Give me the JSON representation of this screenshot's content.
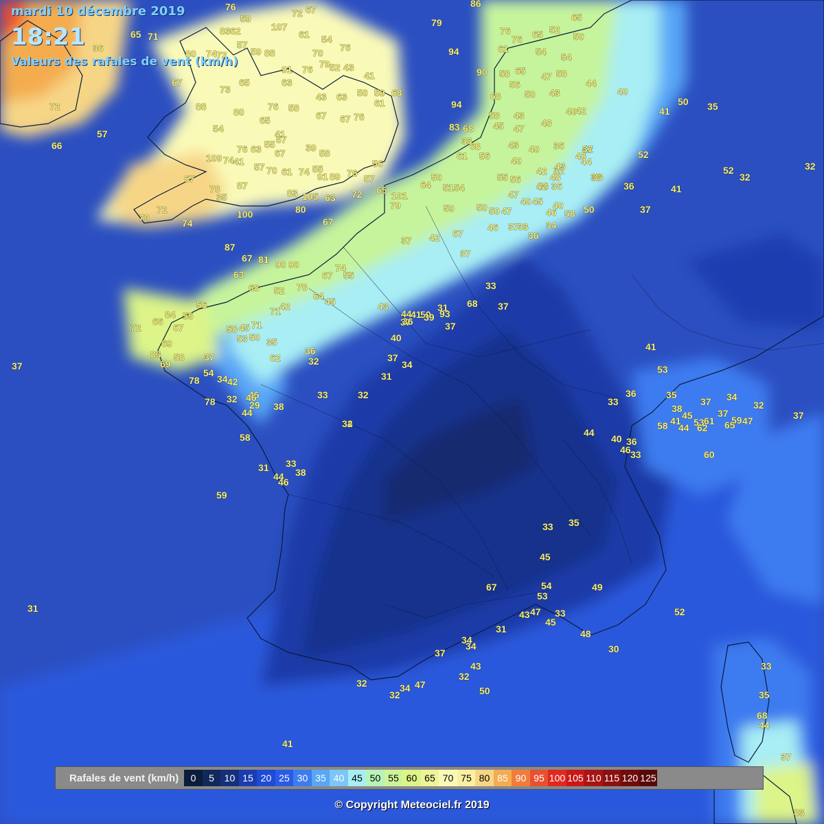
{
  "header": {
    "date": "mardi 10 décembre 2019",
    "time": "18:21",
    "subtitle": "Valeurs des rafales de vent (km/h)"
  },
  "legend": {
    "title": "Rafales de vent (km/h)",
    "items": [
      {
        "value": "0",
        "color": "#0b1c3c",
        "text": "#ffffff"
      },
      {
        "value": "5",
        "color": "#11285a",
        "text": "#ffffff"
      },
      {
        "value": "10",
        "color": "#15307a",
        "text": "#ffffff"
      },
      {
        "value": "15",
        "color": "#1a3cb0",
        "text": "#ffffff"
      },
      {
        "value": "20",
        "color": "#1f4ad6",
        "text": "#ffffff"
      },
      {
        "value": "25",
        "color": "#2a5ae8",
        "text": "#ffffff"
      },
      {
        "value": "30",
        "color": "#3c7cf0",
        "text": "#ffffff"
      },
      {
        "value": "35",
        "color": "#58a6f6",
        "text": "#ffffff"
      },
      {
        "value": "40",
        "color": "#7cc6f8",
        "text": "#ffffff"
      },
      {
        "value": "45",
        "color": "#a8eef4",
        "text": "#000000"
      },
      {
        "value": "50",
        "color": "#b8f4b8",
        "text": "#000000"
      },
      {
        "value": "55",
        "color": "#ccf49a",
        "text": "#000000"
      },
      {
        "value": "60",
        "color": "#dcf488",
        "text": "#000000"
      },
      {
        "value": "65",
        "color": "#eef498",
        "text": "#000000"
      },
      {
        "value": "70",
        "color": "#fafab8",
        "text": "#000000"
      },
      {
        "value": "75",
        "color": "#faf0a4",
        "text": "#000000"
      },
      {
        "value": "80",
        "color": "#f6d686",
        "text": "#000000"
      },
      {
        "value": "85",
        "color": "#f4ac50",
        "text": "#ffffff"
      },
      {
        "value": "90",
        "color": "#f07c3c",
        "text": "#ffffff"
      },
      {
        "value": "95",
        "color": "#e85030",
        "text": "#ffffff"
      },
      {
        "value": "100",
        "color": "#e02820",
        "text": "#ffffff"
      },
      {
        "value": "105",
        "color": "#c81818",
        "text": "#ffffff"
      },
      {
        "value": "110",
        "color": "#a81414",
        "text": "#ffffff"
      },
      {
        "value": "115",
        "color": "#8c1010",
        "text": "#ffffff"
      },
      {
        "value": "120",
        "color": "#700c0c",
        "text": "#ffffff"
      },
      {
        "value": "125",
        "color": "#580808",
        "text": "#ffffff"
      }
    ]
  },
  "copyright": "© Copyright Meteociel.fr 2019",
  "stations": {
    "uk": [
      "65",
      "71",
      "36",
      "76",
      "59",
      "83",
      "107",
      "72",
      "67",
      "62",
      "57",
      "61",
      "54",
      "74",
      "80",
      "72",
      "59",
      "88",
      "70",
      "76",
      "91",
      "76",
      "79",
      "52",
      "43",
      "41",
      "59",
      "68",
      "67",
      "73",
      "65",
      "63",
      "43",
      "63",
      "50",
      "61",
      "88",
      "80",
      "76",
      "58",
      "67",
      "67",
      "76",
      "54",
      "65",
      "41",
      "57",
      "39",
      "58",
      "55",
      "67",
      "63",
      "76",
      "109",
      "74",
      "41",
      "57",
      "70",
      "61",
      "74",
      "55",
      "91",
      "89",
      "76",
      "57",
      "56",
      "65",
      "87",
      "67",
      "78",
      "35",
      "83",
      "105",
      "63",
      "72",
      "80",
      "70",
      "72",
      "74",
      "100",
      "67"
    ],
    "channel_be": [
      "79",
      "86",
      "76",
      "76",
      "65",
      "52",
      "65",
      "94",
      "61",
      "54",
      "50",
      "90",
      "58",
      "65",
      "47",
      "58",
      "56",
      "50",
      "43",
      "54",
      "44",
      "68",
      "94",
      "58",
      "43",
      "40",
      "42",
      "83",
      "68",
      "45",
      "47",
      "48",
      "43",
      "40",
      "36",
      "42",
      "48",
      "33",
      "68",
      "61",
      "56",
      "40",
      "42",
      "32",
      "43",
      "38",
      "55",
      "56",
      "36",
      "42",
      "48",
      "45",
      "47",
      "40",
      "50",
      "40",
      "47",
      "46",
      "58",
      "64",
      "101",
      "79",
      "50",
      "51",
      "54",
      "50",
      "37",
      "33",
      "34",
      "37",
      "42",
      "36",
      "46",
      "37",
      "35",
      "50",
      "67",
      "37",
      "33",
      "37",
      "59"
    ],
    "france_nw": [
      "87",
      "67",
      "81",
      "90",
      "90",
      "63",
      "74",
      "55",
      "67",
      "68",
      "52",
      "78",
      "64",
      "45",
      "42",
      "71",
      "56",
      "55",
      "84",
      "72",
      "66",
      "67",
      "58",
      "45",
      "71",
      "50",
      "53",
      "35",
      "37",
      "62",
      "69",
      "83",
      "69",
      "58",
      "78",
      "54",
      "34",
      "42",
      "32",
      "46",
      "29",
      "44",
      "38",
      "36",
      "32",
      "43",
      "44",
      "37",
      "41",
      "50",
      "31",
      "37",
      "39",
      "36",
      "40",
      "37",
      "34",
      "31",
      "32",
      "33",
      "34",
      "33",
      "38",
      "31",
      "44",
      "46",
      "58",
      "59",
      "68",
      "78",
      "57",
      "66",
      "93",
      "37",
      "57"
    ],
    "france_se": [
      "41",
      "53",
      "33",
      "35",
      "38",
      "37",
      "34",
      "32",
      "41",
      "45",
      "37",
      "59",
      "47",
      "37",
      "58",
      "44",
      "53",
      "61",
      "62",
      "65",
      "60",
      "44",
      "40",
      "36",
      "46",
      "33",
      "33",
      "35",
      "45",
      "54",
      "53",
      "49",
      "67",
      "43",
      "47",
      "33",
      "45",
      "48",
      "31",
      "30",
      "34",
      "34",
      "37",
      "43",
      "32",
      "50",
      "32",
      "34",
      "47",
      "32",
      "52",
      "33",
      "35",
      "68",
      "44",
      "37",
      "83",
      "41",
      "31",
      "32",
      "46",
      "36",
      "72",
      "52",
      "32",
      "32",
      "37",
      "41",
      "52",
      "36",
      "33",
      "44",
      "37",
      "35",
      "50",
      "41",
      "40",
      "36"
    ]
  }
}
